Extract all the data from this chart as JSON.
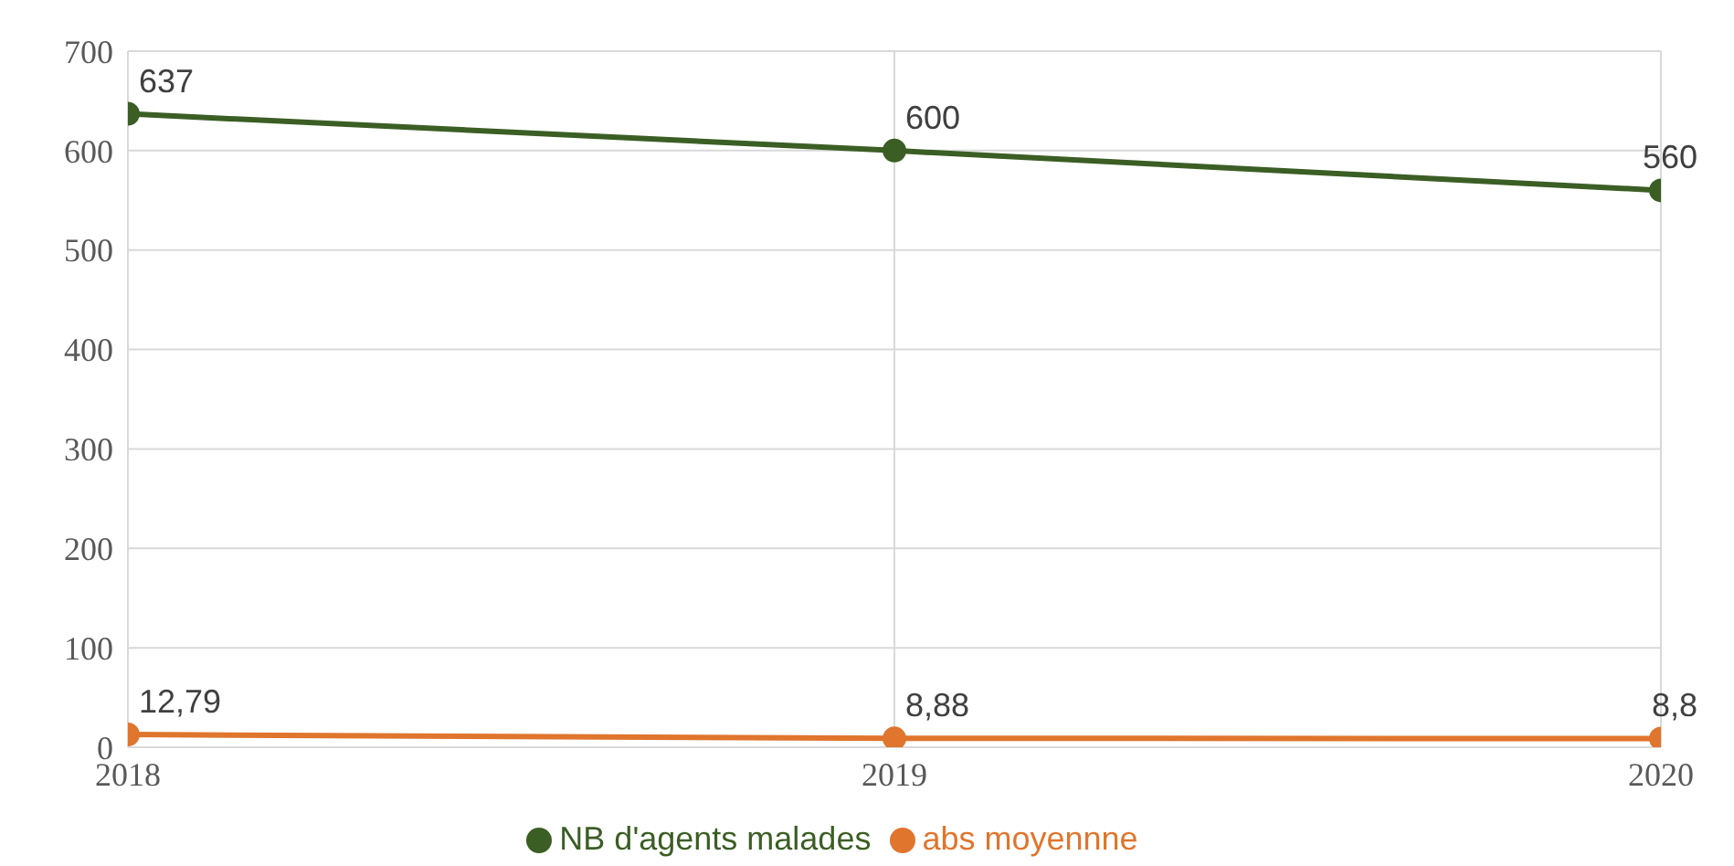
{
  "chart_data": {
    "type": "line",
    "categories": [
      "2018",
      "2019",
      "2020"
    ],
    "series": [
      {
        "name": "NB d'agents malades",
        "color": "#3b5e24",
        "values": [
          637,
          600,
          560
        ],
        "value_labels": [
          "637",
          "600",
          "560"
        ]
      },
      {
        "name": "abs moyennne",
        "color": "#e0752d",
        "values": [
          12.79,
          8.88,
          8.8
        ],
        "value_labels": [
          "12,79",
          "8,88",
          "8,8"
        ]
      }
    ],
    "ylim": [
      0,
      700
    ],
    "yticks": [
      0,
      100,
      200,
      300,
      400,
      500,
      600,
      700
    ],
    "grid": true,
    "legend": "bottom",
    "marker": "circle",
    "line_style": "solid"
  }
}
